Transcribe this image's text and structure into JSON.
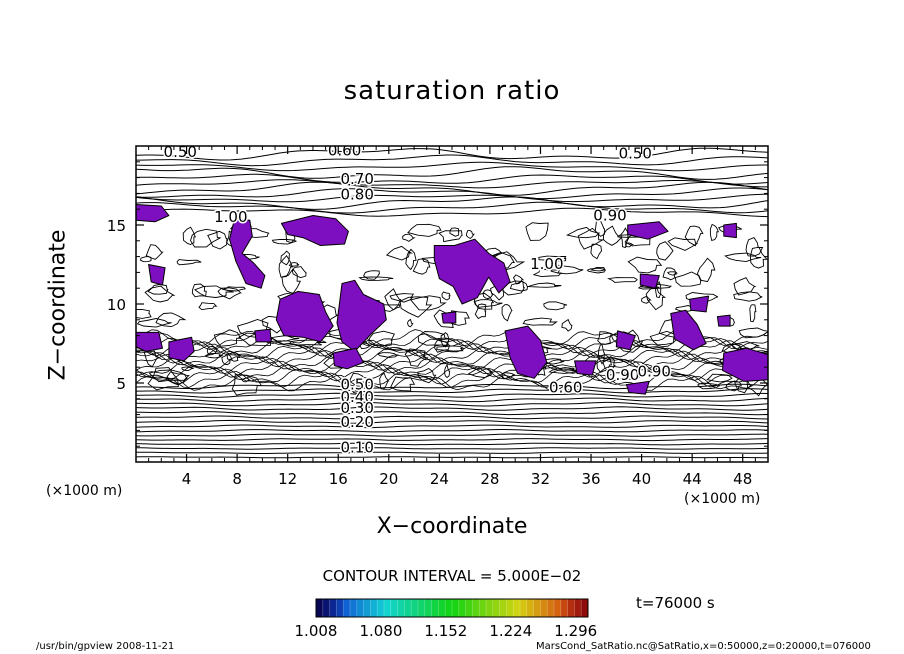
{
  "chart_data": {
    "type": "contour",
    "title": "saturation ratio",
    "xlabel": "X−coordinate",
    "ylabel": "Z−coordinate",
    "x_unit_label": "(×1000 m)",
    "x_ticks": [
      4,
      8,
      12,
      16,
      20,
      24,
      28,
      32,
      36,
      40,
      44,
      48
    ],
    "y_ticks": [
      5,
      10,
      15
    ],
    "xlim": [
      0,
      50
    ],
    "ylim": [
      0,
      20
    ],
    "contour_interval_text": "CONTOUR INTERVAL = 5.000E−02",
    "contour_labels": [
      {
        "text": "0.50",
        "x": 3.5,
        "y": 19.3
      },
      {
        "text": "0.60",
        "x": 16.5,
        "y": 19.4
      },
      {
        "text": "0.50",
        "x": 39.5,
        "y": 19.2
      },
      {
        "text": "0.70",
        "x": 17.5,
        "y": 17.6
      },
      {
        "text": "0.80",
        "x": 17.5,
        "y": 16.6
      },
      {
        "text": "0.90",
        "x": 37.5,
        "y": 15.3
      },
      {
        "text": "1.00",
        "x": 7.5,
        "y": 15.2
      },
      {
        "text": "1.00",
        "x": 32.5,
        "y": 12.2
      },
      {
        "text": "0.90",
        "x": 38.5,
        "y": 5.2
      },
      {
        "text": "0.90",
        "x": 41.0,
        "y": 5.4
      },
      {
        "text": "0.60",
        "x": 34.0,
        "y": 4.4
      },
      {
        "text": "0.50",
        "x": 17.5,
        "y": 4.6
      },
      {
        "text": "0.40",
        "x": 17.5,
        "y": 3.8
      },
      {
        "text": "0.30",
        "x": 17.5,
        "y": 3.1
      },
      {
        "text": "0.20",
        "x": 17.5,
        "y": 2.2
      },
      {
        "text": "0.10",
        "x": 17.5,
        "y": 0.6
      }
    ],
    "supersaturated_threshold": 1.008,
    "colorbar": {
      "ticks": [
        "1.008",
        "1.080",
        "1.152",
        "1.224",
        "1.296"
      ],
      "min": 1.008,
      "max": 1.296
    },
    "time_label": "t=76000 s",
    "grid": false,
    "legend": "colorbar-bottom"
  },
  "footer": {
    "left": "/usr/bin/gpview   2008-11-21",
    "right": "MarsCond_SatRatio.nc@SatRatio,x=0:50000,z=0:20000,t=076000"
  },
  "colors": {
    "supersaturated_fill": "#7d0fc0",
    "contour_line": "#000000"
  }
}
